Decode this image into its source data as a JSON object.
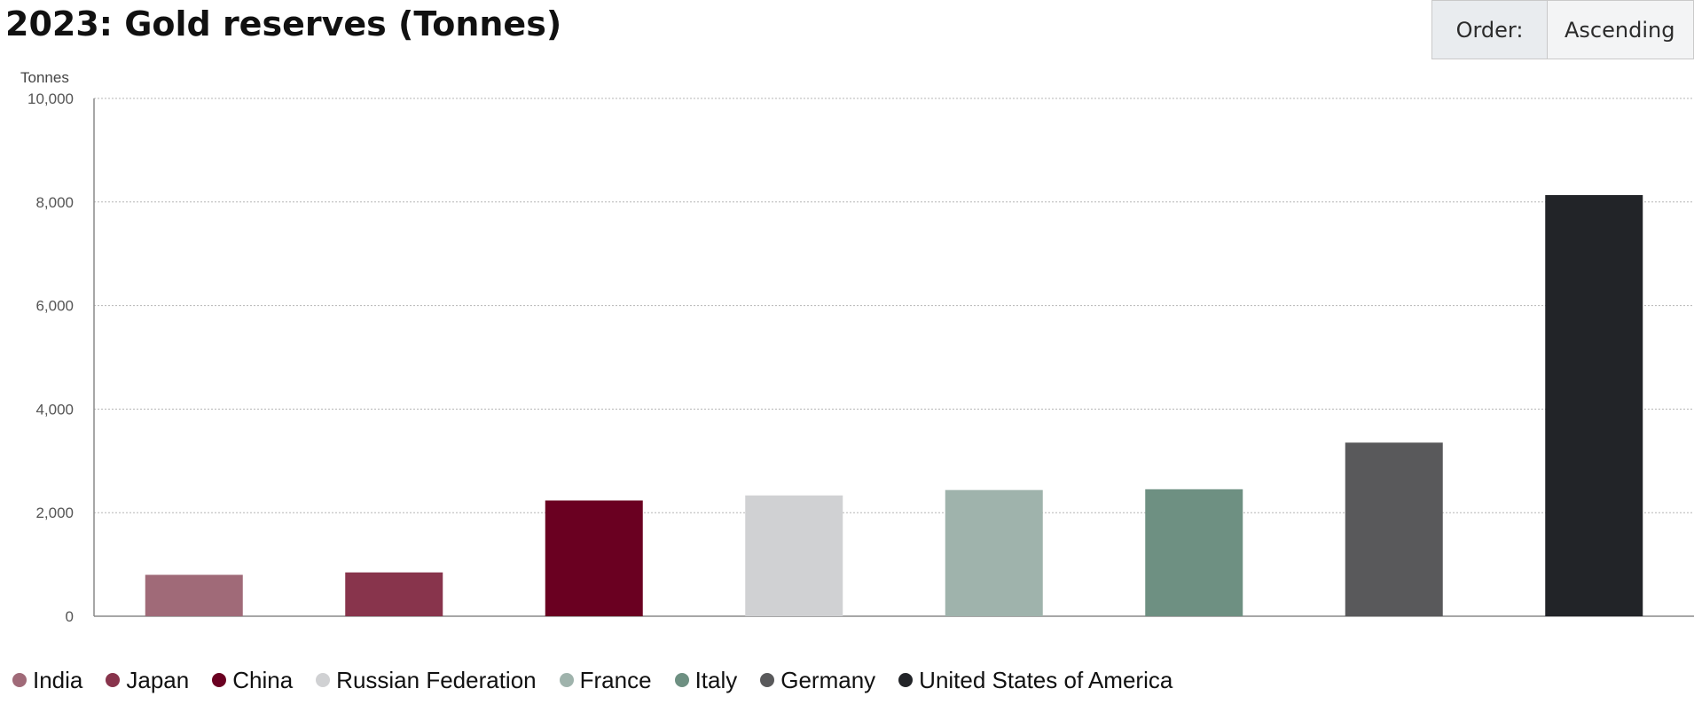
{
  "title": "2023: Gold reserves (Tonnes)",
  "order_control": {
    "label": "Order:",
    "value": "Ascending"
  },
  "chart_data": {
    "type": "bar",
    "title": "2023: Gold reserves (Tonnes)",
    "ylabel": "Tonnes",
    "xlabel": "",
    "ylim": [
      0,
      10000
    ],
    "yticks": [
      0,
      2000,
      4000,
      6000,
      8000,
      10000
    ],
    "ytick_labels": [
      "0",
      "2,000",
      "4,000",
      "6,000",
      "8,000",
      "10,000"
    ],
    "grid": true,
    "legend_position": "bottom",
    "categories": [
      "India",
      "Japan",
      "China",
      "Russian Federation",
      "France",
      "Italy",
      "Germany",
      "United States of America"
    ],
    "values": [
      800,
      846,
      2235,
      2333,
      2437,
      2452,
      3353,
      8133
    ],
    "colors": [
      "#a06a78",
      "#88344c",
      "#6a0021",
      "#d0d1d3",
      "#9fb3ac",
      "#6e9082",
      "#59595b",
      "#222428"
    ]
  }
}
